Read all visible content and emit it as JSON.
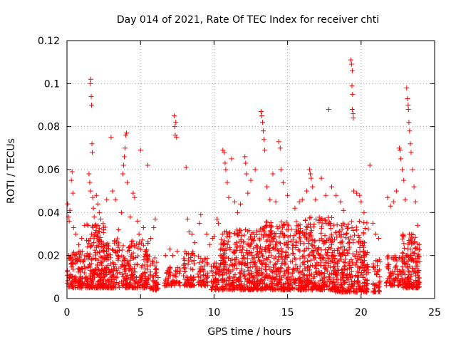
{
  "chart_data": {
    "type": "scatter",
    "title": "Day 014 of 2021, Rate Of TEC Index for receiver chti",
    "xlabel": "GPS time / hours",
    "ylabel": "ROTI / TECUs",
    "xlim": [
      0,
      25
    ],
    "ylim": [
      0,
      0.12
    ],
    "x_ticks": [
      0,
      5,
      10,
      15,
      20,
      25
    ],
    "x_tick_labels": [
      "0",
      "5",
      "10",
      "15",
      "20",
      "25"
    ],
    "y_ticks": [
      0,
      0.02,
      0.04,
      0.06,
      0.08,
      0.1,
      0.12
    ],
    "y_tick_labels": [
      "0",
      "0.02",
      "0.04",
      "0.06",
      "0.08",
      "0.1",
      "0.12"
    ],
    "grid": true,
    "marker": "+",
    "marker_color": "#ff0000",
    "series": [
      {
        "name": "ROTI",
        "points": [
          [
            0.05,
            0.044
          ],
          [
            0.1,
            0.038
          ],
          [
            0.15,
            0.036
          ],
          [
            0.2,
            0.041
          ],
          [
            0.3,
            0.055
          ],
          [
            0.35,
            0.059
          ],
          [
            0.4,
            0.049
          ],
          [
            0.45,
            0.033
          ],
          [
            0.6,
            0.03
          ],
          [
            0.8,
            0.025
          ],
          [
            1.0,
            0.028
          ],
          [
            1.2,
            0.034
          ],
          [
            1.6,
            0.1
          ],
          [
            1.62,
            0.102
          ],
          [
            1.65,
            0.094
          ],
          [
            1.67,
            0.09
          ],
          [
            1.7,
            0.072
          ],
          [
            1.72,
            0.068
          ],
          [
            1.5,
            0.058
          ],
          [
            1.55,
            0.054
          ],
          [
            1.6,
            0.05
          ],
          [
            1.75,
            0.047
          ],
          [
            1.8,
            0.042
          ],
          [
            1.85,
            0.038
          ],
          [
            1.9,
            0.034
          ],
          [
            2.0,
            0.048
          ],
          [
            2.1,
            0.044
          ],
          [
            2.2,
            0.04
          ],
          [
            2.3,
            0.037
          ],
          [
            2.5,
            0.032
          ],
          [
            2.7,
            0.046
          ],
          [
            3.0,
            0.075
          ],
          [
            3.1,
            0.05
          ],
          [
            3.3,
            0.046
          ],
          [
            3.5,
            0.032
          ],
          [
            3.7,
            0.04
          ],
          [
            3.8,
            0.058
          ],
          [
            3.85,
            0.062
          ],
          [
            3.9,
            0.066
          ],
          [
            3.95,
            0.07
          ],
          [
            4.0,
            0.076
          ],
          [
            4.05,
            0.077
          ],
          [
            4.1,
            0.054
          ],
          [
            4.3,
            0.038
          ],
          [
            4.5,
            0.049
          ],
          [
            4.6,
            0.047
          ],
          [
            4.8,
            0.036
          ],
          [
            4.9,
            0.03
          ],
          [
            5.0,
            0.069
          ],
          [
            5.2,
            0.033
          ],
          [
            5.5,
            0.062
          ],
          [
            5.7,
            0.028
          ],
          [
            5.9,
            0.033
          ],
          [
            6.0,
            0.037
          ],
          [
            6.7,
            0.02
          ],
          [
            7.0,
            0.023
          ],
          [
            7.2,
            0.02
          ],
          [
            7.3,
            0.085
          ],
          [
            7.33,
            0.08
          ],
          [
            7.36,
            0.076
          ],
          [
            7.4,
            0.082
          ],
          [
            7.45,
            0.075
          ],
          [
            7.5,
            0.022
          ],
          [
            8.1,
            0.061
          ],
          [
            8.2,
            0.037
          ],
          [
            8.3,
            0.031
          ],
          [
            8.5,
            0.03
          ],
          [
            8.7,
            0.026
          ],
          [
            9.0,
            0.035
          ],
          [
            9.1,
            0.039
          ],
          [
            9.5,
            0.03
          ],
          [
            9.7,
            0.025
          ],
          [
            9.9,
            0.028
          ],
          [
            10.0,
            0.029
          ],
          [
            10.2,
            0.037
          ],
          [
            10.3,
            0.035
          ],
          [
            10.6,
            0.069
          ],
          [
            10.7,
            0.068
          ],
          [
            10.75,
            0.063
          ],
          [
            10.8,
            0.06
          ],
          [
            10.9,
            0.054
          ],
          [
            11.0,
            0.047
          ],
          [
            11.2,
            0.065
          ],
          [
            11.4,
            0.045
          ],
          [
            11.6,
            0.04
          ],
          [
            11.8,
            0.044
          ],
          [
            12.1,
            0.066
          ],
          [
            12.15,
            0.063
          ],
          [
            12.2,
            0.058
          ],
          [
            12.3,
            0.049
          ],
          [
            12.5,
            0.055
          ],
          [
            12.8,
            0.06
          ],
          [
            13.2,
            0.087
          ],
          [
            13.25,
            0.085
          ],
          [
            13.3,
            0.082
          ],
          [
            13.35,
            0.078
          ],
          [
            13.4,
            0.074
          ],
          [
            13.45,
            0.069
          ],
          [
            13.6,
            0.052
          ],
          [
            13.8,
            0.046
          ],
          [
            14.0,
            0.058
          ],
          [
            14.2,
            0.045
          ],
          [
            14.4,
            0.073
          ],
          [
            14.5,
            0.07
          ],
          [
            14.55,
            0.06
          ],
          [
            14.7,
            0.054
          ],
          [
            15.0,
            0.048
          ],
          [
            15.5,
            0.042
          ],
          [
            15.8,
            0.045
          ],
          [
            16.0,
            0.046
          ],
          [
            16.3,
            0.05
          ],
          [
            16.5,
            0.06
          ],
          [
            16.55,
            0.058
          ],
          [
            16.6,
            0.056
          ],
          [
            16.7,
            0.052
          ],
          [
            16.9,
            0.046
          ],
          [
            17.3,
            0.056
          ],
          [
            17.6,
            0.048
          ],
          [
            17.8,
            0.088
          ],
          [
            18.0,
            0.052
          ],
          [
            18.3,
            0.048
          ],
          [
            18.6,
            0.045
          ],
          [
            18.8,
            0.041
          ],
          [
            19.3,
            0.111
          ],
          [
            19.35,
            0.109
          ],
          [
            19.4,
            0.106
          ],
          [
            19.38,
            0.099
          ],
          [
            19.42,
            0.095
          ],
          [
            19.4,
            0.088
          ],
          [
            19.45,
            0.086
          ],
          [
            19.47,
            0.084
          ],
          [
            19.5,
            0.05
          ],
          [
            19.7,
            0.049
          ],
          [
            19.9,
            0.048
          ],
          [
            20.0,
            0.045
          ],
          [
            20.2,
            0.04
          ],
          [
            20.6,
            0.062
          ],
          [
            20.8,
            0.035
          ],
          [
            21.0,
            0.03
          ],
          [
            21.2,
            0.028
          ],
          [
            21.8,
            0.047
          ],
          [
            22.0,
            0.043
          ],
          [
            22.2,
            0.045
          ],
          [
            22.4,
            0.05
          ],
          [
            22.6,
            0.07
          ],
          [
            22.65,
            0.069
          ],
          [
            22.7,
            0.065
          ],
          [
            22.8,
            0.06
          ],
          [
            22.9,
            0.055
          ],
          [
            23.0,
            0.046
          ],
          [
            23.1,
            0.098
          ],
          [
            23.15,
            0.093
          ],
          [
            23.2,
            0.09
          ],
          [
            23.22,
            0.088
          ],
          [
            23.25,
            0.082
          ],
          [
            23.3,
            0.078
          ],
          [
            23.35,
            0.072
          ],
          [
            23.4,
            0.068
          ],
          [
            23.5,
            0.06
          ],
          [
            23.6,
            0.052
          ],
          [
            23.7,
            0.045
          ],
          [
            23.85,
            0.034
          ],
          [
            23.95,
            0.025
          ]
        ],
        "dense_segments": [
          {
            "x_start": 0.0,
            "x_end": 1.3,
            "y_low": 0.005,
            "y_high": 0.022,
            "count": 130
          },
          {
            "x_start": 1.3,
            "x_end": 2.6,
            "y_low": 0.005,
            "y_high": 0.035,
            "count": 210
          },
          {
            "x_start": 2.6,
            "x_end": 5.6,
            "y_low": 0.005,
            "y_high": 0.028,
            "count": 320
          },
          {
            "x_start": 5.6,
            "x_end": 6.2,
            "y_low": 0.004,
            "y_high": 0.02,
            "count": 50
          },
          {
            "x_start": 6.6,
            "x_end": 7.7,
            "y_low": 0.006,
            "y_high": 0.016,
            "count": 60
          },
          {
            "x_start": 7.9,
            "x_end": 8.7,
            "y_low": 0.006,
            "y_high": 0.022,
            "count": 70
          },
          {
            "x_start": 8.9,
            "x_end": 9.6,
            "y_low": 0.006,
            "y_high": 0.02,
            "count": 55
          },
          {
            "x_start": 9.8,
            "x_end": 10.4,
            "y_low": 0.004,
            "y_high": 0.018,
            "count": 50
          },
          {
            "x_start": 10.4,
            "x_end": 13.0,
            "y_low": 0.004,
            "y_high": 0.032,
            "count": 340
          },
          {
            "x_start": 13.0,
            "x_end": 16.0,
            "y_low": 0.004,
            "y_high": 0.036,
            "count": 400
          },
          {
            "x_start": 16.0,
            "x_end": 18.2,
            "y_low": 0.004,
            "y_high": 0.038,
            "count": 320
          },
          {
            "x_start": 18.2,
            "x_end": 20.5,
            "y_low": 0.003,
            "y_high": 0.036,
            "count": 310
          },
          {
            "x_start": 20.8,
            "x_end": 21.3,
            "y_low": 0.003,
            "y_high": 0.02,
            "count": 40
          },
          {
            "x_start": 21.7,
            "x_end": 22.8,
            "y_low": 0.006,
            "y_high": 0.02,
            "count": 80
          },
          {
            "x_start": 22.8,
            "x_end": 24.0,
            "y_low": 0.005,
            "y_high": 0.03,
            "count": 170
          }
        ]
      }
    ]
  }
}
